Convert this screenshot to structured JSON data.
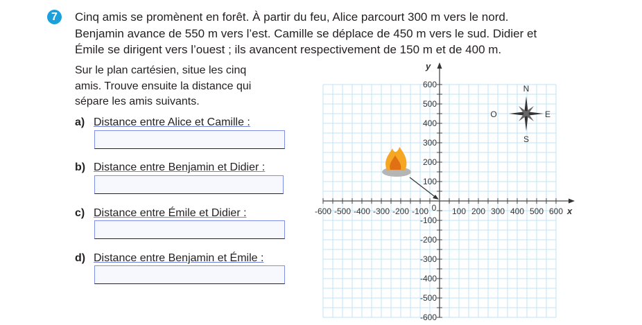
{
  "exercise_number": "7",
  "intro_lines": [
    "Cinq amis se promènent en forêt. À partir du feu, Alice parcourt 300 m vers le nord.",
    "Benjamin avance de 550 m vers l’est. Camille se déplace de 450 m vers le sud. Didier et",
    "Émile se dirigent vers l’ouest ; ils avancent respectivement de 150 m et de 400 m."
  ],
  "instruction_lines": [
    "Sur le plan cartésien, situe les cinq",
    "amis. Trouve ensuite la distance qui",
    "sépare les amis suivants."
  ],
  "questions": [
    {
      "letter": "a)",
      "text": "Distance entre Alice et Camille :",
      "answer": ""
    },
    {
      "letter": "b)",
      "text": "Distance entre Benjamin et Didier :",
      "answer": ""
    },
    {
      "letter": "c)",
      "text": "Distance entre Émile et Didier :",
      "answer": ""
    },
    {
      "letter": "d)",
      "text": "Distance entre Benjamin et Émile :",
      "answer": ""
    }
  ],
  "plane": {
    "x_label": "x",
    "y_label": "y",
    "origin_label": "0",
    "range": [
      -600,
      600
    ],
    "grid_step": 50,
    "label_step": 100,
    "x_ticks": [
      "-600",
      "-500",
      "-400",
      "-300",
      "-200",
      "-100",
      "100",
      "200",
      "300",
      "400",
      "500",
      "600"
    ],
    "y_ticks": [
      "600",
      "500",
      "400",
      "300",
      "200",
      "100",
      "-100",
      "-200",
      "-300",
      "-400",
      "-500",
      "-600"
    ],
    "compass": {
      "n": "N",
      "s": "S",
      "e": "E",
      "w": "O"
    },
    "campfire_icon": "campfire-icon",
    "grid_color": "#bfe3f5"
  },
  "colors": {
    "accent": "#1ba0dc",
    "box_border": "#7f8fe6"
  }
}
